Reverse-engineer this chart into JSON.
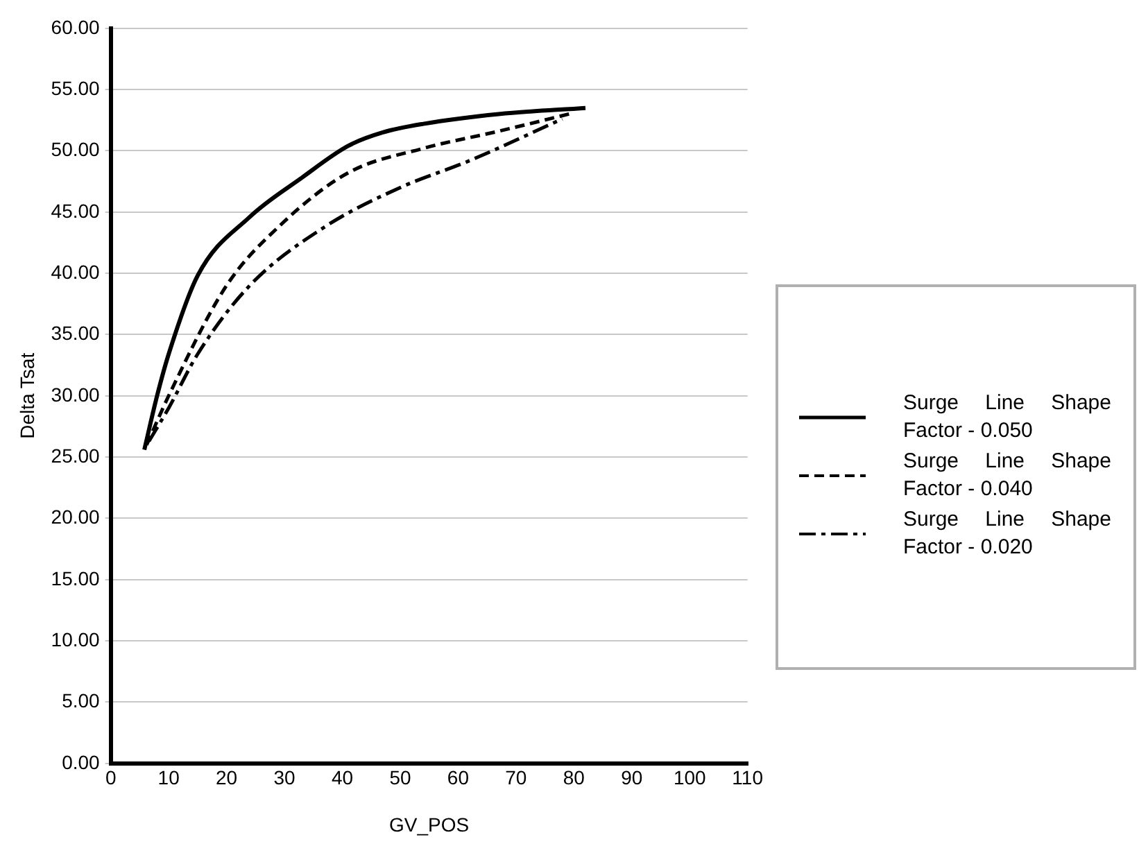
{
  "chart_data": {
    "type": "line",
    "xlabel": "GV_POS",
    "ylabel": "Delta Tsat",
    "xlim": [
      0,
      110
    ],
    "xticks": [
      0,
      10,
      20,
      30,
      40,
      50,
      60,
      70,
      80,
      90,
      100,
      110
    ],
    "ylim": [
      0,
      60
    ],
    "yticks": [
      {
        "value": 0,
        "label": "0.00"
      },
      {
        "value": 5,
        "label": "5.00"
      },
      {
        "value": 10,
        "label": "10.00"
      },
      {
        "value": 15,
        "label": "15.00"
      },
      {
        "value": 20,
        "label": "20.00"
      },
      {
        "value": 25,
        "label": "25.00"
      },
      {
        "value": 30,
        "label": "30.00"
      },
      {
        "value": 35,
        "label": "35.00"
      },
      {
        "value": 40,
        "label": "40.00"
      },
      {
        "value": 45,
        "label": "45.00"
      },
      {
        "value": 50,
        "label": "50.00"
      },
      {
        "value": 55,
        "label": "55.00"
      },
      {
        "value": 60,
        "label": "60.00"
      }
    ],
    "grid": "y",
    "legend": "right",
    "marker": "none",
    "series": [
      {
        "name": "Surge Line Shape Factor - 0.050",
        "color": "#000000",
        "line_style": "solid",
        "x": [
          5.8,
          8,
          10,
          15,
          24,
          33,
          41,
          47,
          54,
          67,
          82
        ],
        "values": [
          25.6,
          30,
          33.4,
          39.8,
          44.6,
          47.8,
          50.4,
          51.5,
          52.2,
          53,
          53.5
        ]
      },
      {
        "name": "Surge Line Shape Factor - 0.040",
        "color": "#000000",
        "line_style": "dashed",
        "x": [
          6.2,
          10,
          20,
          29,
          41,
          54,
          67,
          80
        ],
        "values": [
          26,
          30,
          39,
          43.8,
          48.2,
          50.2,
          51.6,
          53.1
        ]
      },
      {
        "name": "Surge Line Shape Factor - 0.020",
        "color": "#000000",
        "line_style": "dashdot",
        "x": [
          6.6,
          10,
          15,
          24,
          37,
          50,
          62,
          78
        ],
        "values": [
          26.3,
          29,
          33.4,
          39,
          43.8,
          47,
          49.2,
          52.6
        ]
      }
    ]
  }
}
